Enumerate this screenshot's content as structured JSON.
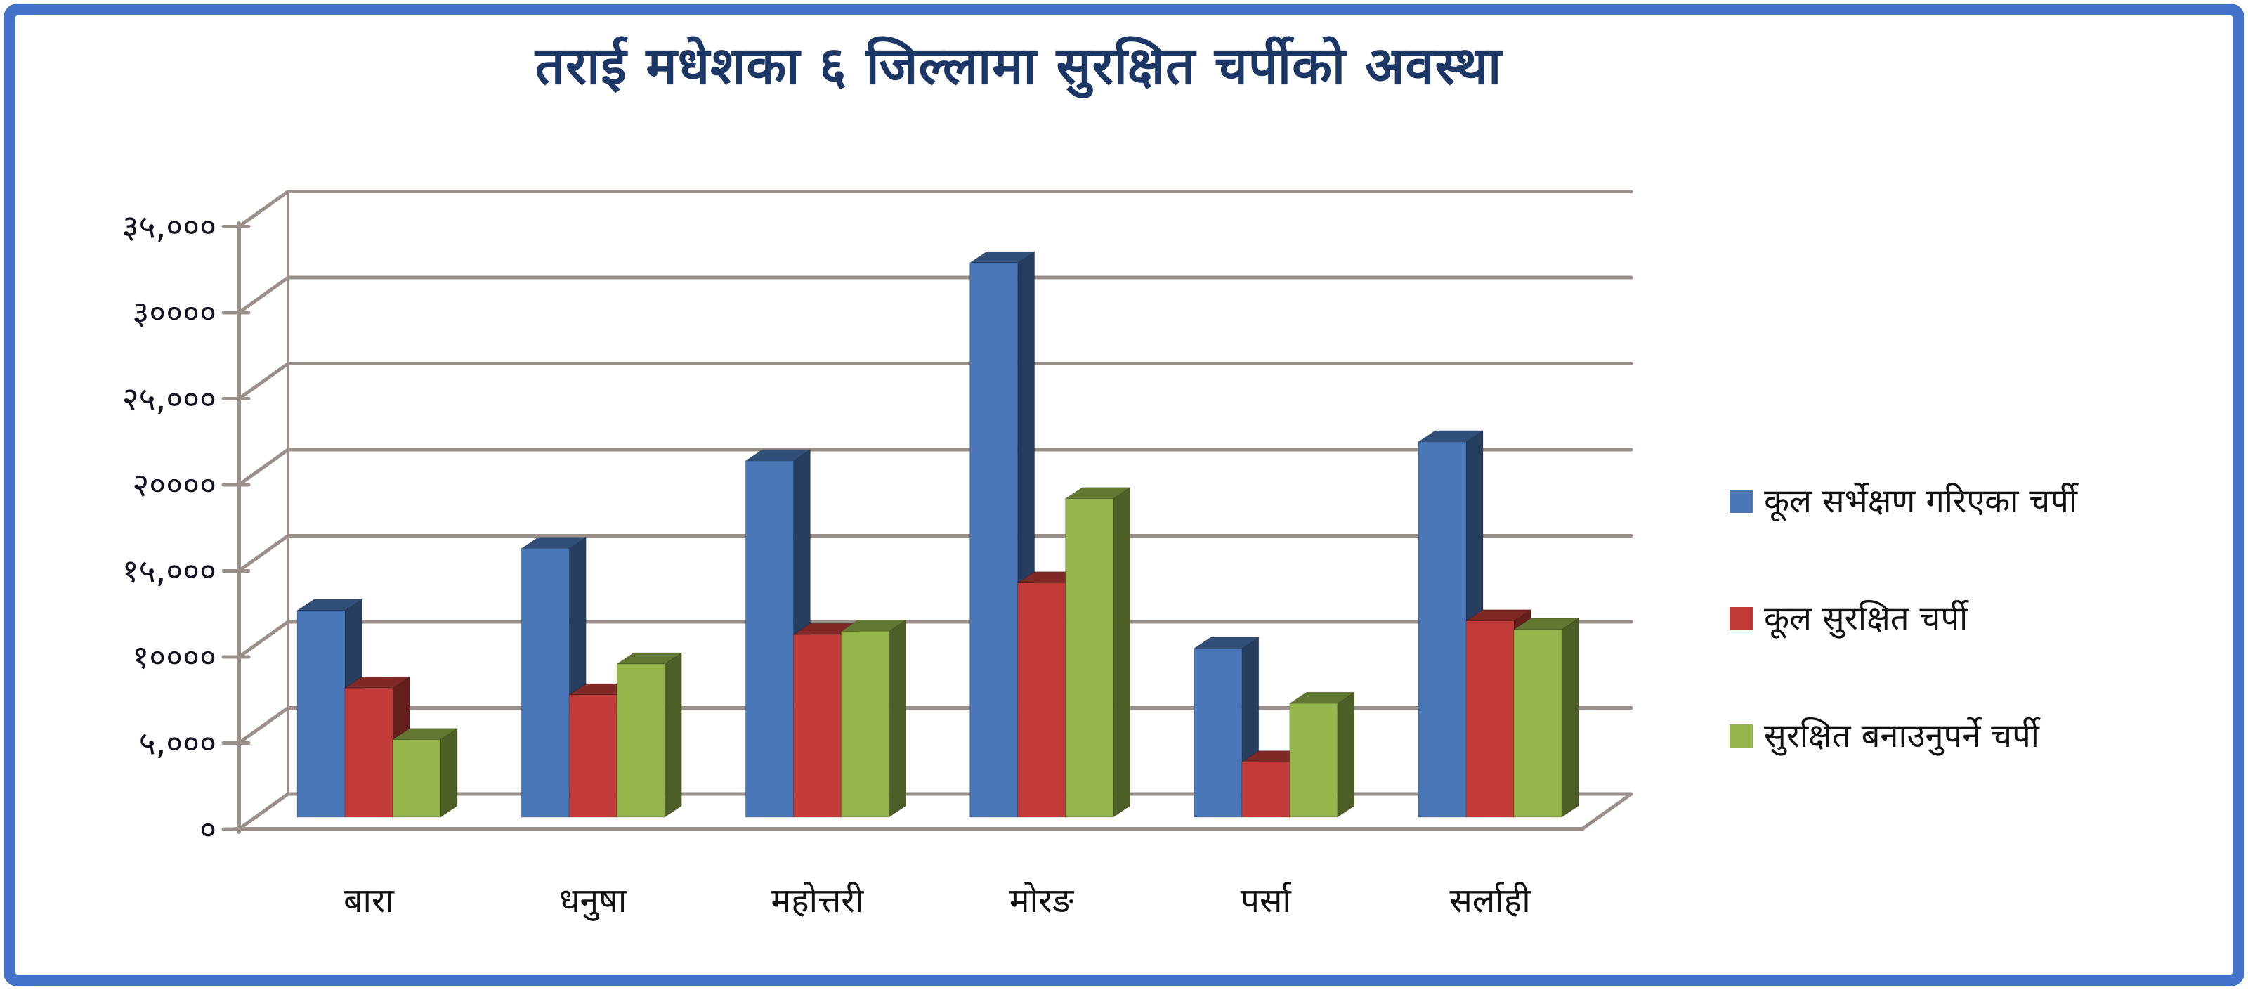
{
  "title": "तराई मधेशका ६ जिल्लामा सुरक्षित चर्पीको अवस्था",
  "y_axis": {
    "tick_labels": [
      "०",
      "५,०००",
      "१००००",
      "१५,०००",
      "२००००",
      "२५,०००",
      "३००००",
      "३५,०००"
    ],
    "tick_values": [
      0,
      5000,
      10000,
      15000,
      20000,
      25000,
      30000,
      35000
    ]
  },
  "chart_data": {
    "type": "bar",
    "style": "3d-clustered-column",
    "title": "तराई मधेशका ६ जिल्लामा सुरक्षित चर्पीको अवस्था",
    "categories": [
      "बारा",
      "धनुषा",
      "महोत्तरी",
      "मोरङ",
      "पर्सा",
      "सर्लाही"
    ],
    "series": [
      {
        "name": "कूल सर्भेक्षण गरिएका चर्पी",
        "color": "#4A77B8",
        "values": [
          12000,
          15600,
          20700,
          32200,
          9800,
          21800
        ]
      },
      {
        "name": "कूल सुरक्षित चर्पी",
        "color": "#C13C38",
        "values": [
          7500,
          7100,
          10600,
          13600,
          3200,
          11400
        ]
      },
      {
        "name": "सुरक्षित बनाउनुपर्ने चर्पी",
        "color": "#94B54A",
        "values": [
          4500,
          8900,
          10800,
          18500,
          6600,
          10900
        ]
      }
    ],
    "xlabel": "",
    "ylabel": "",
    "ylim": [
      0,
      35000
    ],
    "grid": true,
    "gridline_step": 5000,
    "legend_position": "right"
  },
  "colors": {
    "border": "#4372C8",
    "title_text": "#1C3666",
    "axis_text": "#111122",
    "gridline": "#9A9089",
    "background": "#FFFFFF"
  }
}
